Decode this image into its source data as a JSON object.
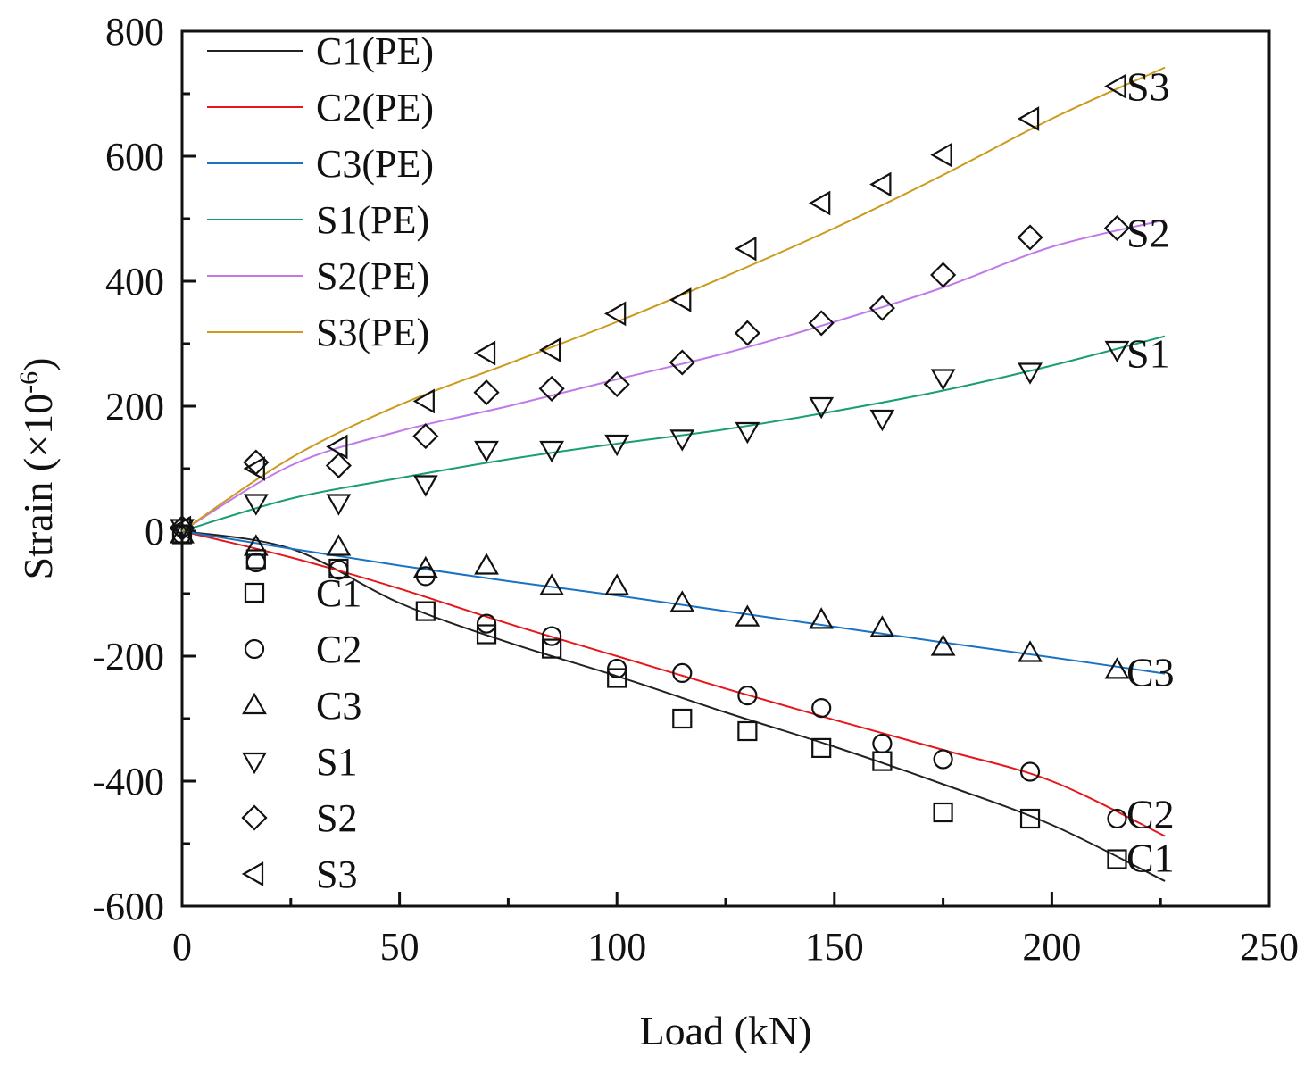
{
  "chart_data": {
    "type": "line",
    "title": "",
    "xlabel": "Load (kN)",
    "ylabel_main": "Strain (×10",
    "ylabel_sup": "-6",
    "ylabel_close": ")",
    "xlim": [
      0,
      250
    ],
    "ylim": [
      -600,
      800
    ],
    "xticks": [
      0,
      50,
      100,
      150,
      200,
      250
    ],
    "yticks": [
      -600,
      -400,
      -200,
      0,
      200,
      400,
      600,
      800
    ],
    "xtick_labels": [
      "0",
      "50",
      "100",
      "150",
      "200",
      "250"
    ],
    "ytick_labels": [
      "-600",
      "-400",
      "-200",
      "0",
      "200",
      "400",
      "600",
      "800"
    ],
    "grid": false,
    "legend_lines_position": "top-left",
    "legend_markers_position": "lower-left",
    "colors": {
      "C1": "#222222",
      "C2": "#e8161a",
      "C3": "#1a72c2",
      "S1": "#1a9e73",
      "S2": "#c07ae8",
      "S3": "#cc9a1e"
    },
    "fit_series": [
      {
        "name": "C1(PE)",
        "key": "C1",
        "x": [
          0,
          25,
          50,
          75,
          100,
          125,
          150,
          175,
          200,
          226
        ],
        "values": [
          0,
          -28,
          -115,
          -178,
          -232,
          -290,
          -345,
          -405,
          -470,
          -560
        ]
      },
      {
        "name": "C2(PE)",
        "key": "C2",
        "x": [
          0,
          25,
          50,
          75,
          100,
          125,
          150,
          175,
          200,
          226
        ],
        "values": [
          0,
          -42,
          -92,
          -148,
          -200,
          -252,
          -302,
          -350,
          -400,
          -488
        ]
      },
      {
        "name": "C3(PE)",
        "key": "C3",
        "x": [
          0,
          25,
          50,
          75,
          100,
          125,
          150,
          175,
          200,
          226
        ],
        "values": [
          0,
          -28,
          -55,
          -80,
          -103,
          -128,
          -153,
          -178,
          -202,
          -228
        ]
      },
      {
        "name": "S1(PE)",
        "key": "S1",
        "x": [
          0,
          25,
          50,
          75,
          100,
          125,
          150,
          175,
          200,
          226
        ],
        "values": [
          0,
          52,
          85,
          115,
          140,
          163,
          192,
          225,
          265,
          312
        ]
      },
      {
        "name": "S2(PE)",
        "key": "S2",
        "x": [
          0,
          25,
          50,
          75,
          100,
          125,
          150,
          175,
          200,
          226
        ],
        "values": [
          0,
          105,
          160,
          200,
          243,
          285,
          335,
          390,
          455,
          498
        ]
      },
      {
        "name": "S3(PE)",
        "key": "S3",
        "x": [
          0,
          25,
          50,
          75,
          100,
          125,
          150,
          175,
          200,
          226
        ],
        "values": [
          0,
          117,
          202,
          268,
          335,
          408,
          485,
          570,
          660,
          742
        ]
      }
    ],
    "measured_x": [
      0,
      17,
      36,
      56,
      70,
      85,
      100,
      115,
      130,
      147,
      161,
      175,
      195,
      215
    ],
    "measured_series": [
      {
        "name": "C1",
        "marker": "square",
        "values": [
          -5,
          -45,
          -60,
          -128,
          -165,
          -188,
          -235,
          -300,
          -320,
          -347,
          -368,
          -450,
          -460,
          -525
        ]
      },
      {
        "name": "C2",
        "marker": "circle",
        "values": [
          -5,
          -50,
          -62,
          -72,
          -148,
          -168,
          -220,
          -227,
          -263,
          -283,
          -340,
          -365,
          -385,
          -460
        ]
      },
      {
        "name": "C3",
        "marker": "triangle-up",
        "values": [
          -5,
          -25,
          -25,
          -60,
          -55,
          -88,
          -88,
          -115,
          -138,
          -142,
          -155,
          -185,
          -195,
          -222
        ]
      },
      {
        "name": "S1",
        "marker": "triangle-down",
        "values": [
          5,
          45,
          45,
          75,
          130,
          130,
          140,
          148,
          160,
          200,
          180,
          245,
          255,
          290
        ]
      },
      {
        "name": "S2",
        "marker": "diamond",
        "values": [
          5,
          110,
          105,
          152,
          222,
          228,
          235,
          270,
          317,
          333,
          357,
          410,
          470,
          485
        ]
      },
      {
        "name": "S3",
        "marker": "triangle-left",
        "values": [
          5,
          100,
          135,
          208,
          285,
          290,
          348,
          370,
          452,
          525,
          555,
          602,
          660,
          712
        ]
      }
    ],
    "end_labels": [
      {
        "text": "S3",
        "value": 712
      },
      {
        "text": "S2",
        "value": 478
      },
      {
        "text": "S1",
        "value": 285
      },
      {
        "text": "C3",
        "value": -225
      },
      {
        "text": "C2",
        "value": -452
      },
      {
        "text": "C1",
        "value": -522
      }
    ]
  }
}
